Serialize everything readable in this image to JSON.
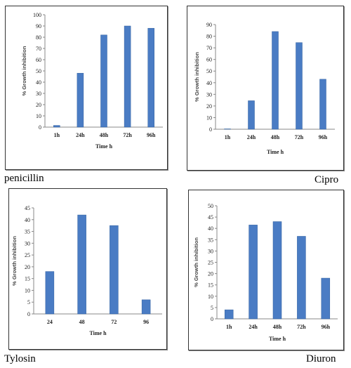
{
  "colors": {
    "bar": "#4a7cc4",
    "bar_edge": "#2f5f9e",
    "axis": "#888888",
    "frame": "#333333"
  },
  "captions": {
    "penicillin": "penicillin",
    "cipro": "Cipro",
    "tylosin": "Tylosin",
    "diuron": "Diuron"
  },
  "chart_data": [
    {
      "type": "bar",
      "title": "",
      "caption": "penicillin",
      "categories": [
        "1h",
        "24h",
        "48h",
        "72h",
        "96h"
      ],
      "values": [
        1.5,
        48,
        82,
        90,
        88
      ],
      "yticks": [
        "0",
        "10",
        "20",
        "30",
        "40",
        "50",
        "60",
        "70",
        "80",
        "90",
        "100"
      ],
      "ylim": [
        0,
        100
      ],
      "xlabel": "Time h",
      "ylabel": "% Growth inhibition",
      "grid": false
    },
    {
      "type": "bar",
      "title": "",
      "caption": "Cipro",
      "categories": [
        "1h",
        "24h",
        "48h",
        "72h",
        "96h"
      ],
      "values": [
        0.3,
        24.5,
        84,
        74.5,
        43
      ],
      "yticks": [
        "0",
        "10",
        "20",
        "30",
        "40",
        "50",
        "60",
        "70",
        "80",
        "90"
      ],
      "ylim": [
        0,
        90
      ],
      "xlabel": "Time h",
      "ylabel": "% Growth inhibition",
      "grid": false
    },
    {
      "type": "bar",
      "title": "",
      "caption": "Tylosin",
      "categories": [
        "24",
        "48",
        "72",
        "96"
      ],
      "values": [
        18,
        42,
        37.5,
        6
      ],
      "yticks": [
        "0",
        "5",
        "10",
        "15",
        "20",
        "25",
        "30",
        "35",
        "40",
        "45"
      ],
      "ylim": [
        0,
        45
      ],
      "xlabel": "Time h",
      "ylabel": "% Growth inhibition",
      "grid": false
    },
    {
      "type": "bar",
      "title": "",
      "caption": "Diuron",
      "categories": [
        "1h",
        "24h",
        "48h",
        "72h",
        "96h"
      ],
      "values": [
        4,
        41.5,
        43,
        36.5,
        18
      ],
      "yticks": [
        "0",
        "5",
        "10",
        "15",
        "20",
        "25",
        "30",
        "35",
        "40",
        "45",
        "50"
      ],
      "ylim": [
        0,
        50
      ],
      "xlabel": "Time h",
      "ylabel": "% Growth inhibition",
      "grid": false
    }
  ]
}
